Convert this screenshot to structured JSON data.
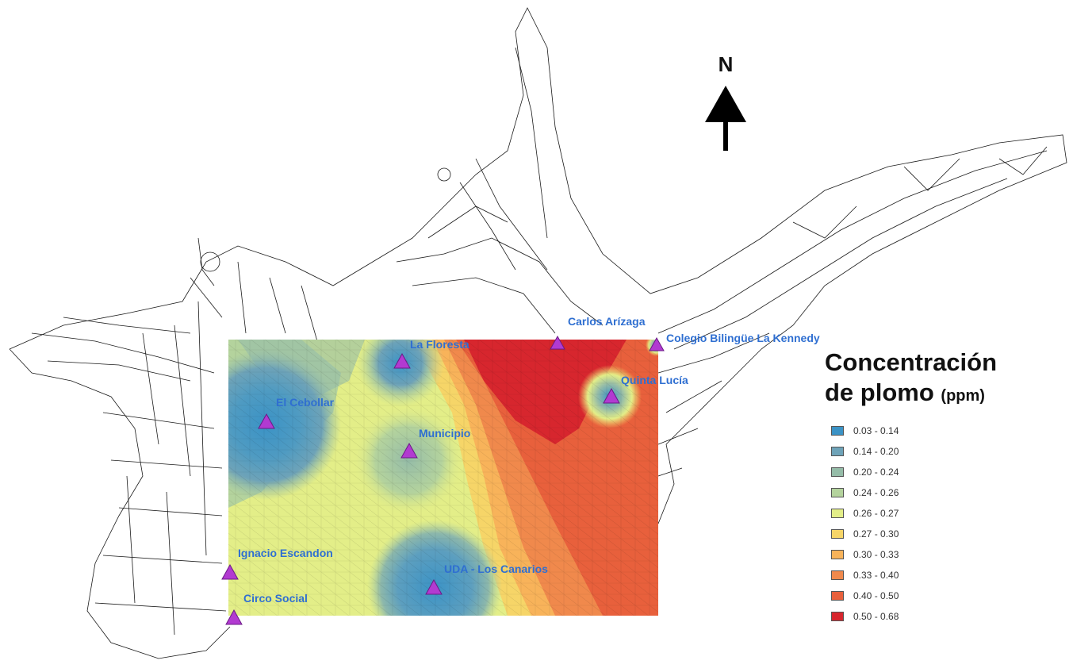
{
  "north_arrow": {
    "letter": "N"
  },
  "legend": {
    "title_line1": "Concentración",
    "title_line2": "de plomo",
    "unit": "(ppm)",
    "classes": [
      {
        "label": "0.03 - 0.14",
        "color": "#3b93c6"
      },
      {
        "label": "0.14 - 0.20",
        "color": "#6ea3b8"
      },
      {
        "label": "0.20 - 0.24",
        "color": "#95bca8"
      },
      {
        "label": "0.24 - 0.26",
        "color": "#b4d39d"
      },
      {
        "label": "0.26 - 0.27",
        "color": "#e3ee88"
      },
      {
        "label": "0.27 - 0.30",
        "color": "#f6d568"
      },
      {
        "label": "0.30 - 0.33",
        "color": "#f8b35a"
      },
      {
        "label": "0.33 - 0.40",
        "color": "#f0894c"
      },
      {
        "label": "0.40 - 0.50",
        "color": "#e8603c"
      },
      {
        "label": "0.50 - 0.68",
        "color": "#d7262e"
      }
    ]
  },
  "stations": [
    {
      "name": "La Floresta"
    },
    {
      "name": "Carlos Arízaga"
    },
    {
      "name": "Colegio Bilingüe La Kennedy"
    },
    {
      "name": "Quinta Lucía"
    },
    {
      "name": "El Cebollar"
    },
    {
      "name": "Municipio"
    },
    {
      "name": "Ignacio Escandon"
    },
    {
      "name": "UDA - Los Canarios"
    },
    {
      "name": "Circo Social"
    }
  ],
  "colors": {
    "marker": "#b23ad1",
    "label": "#2f6fd1",
    "streets": "#1a1a1a"
  }
}
